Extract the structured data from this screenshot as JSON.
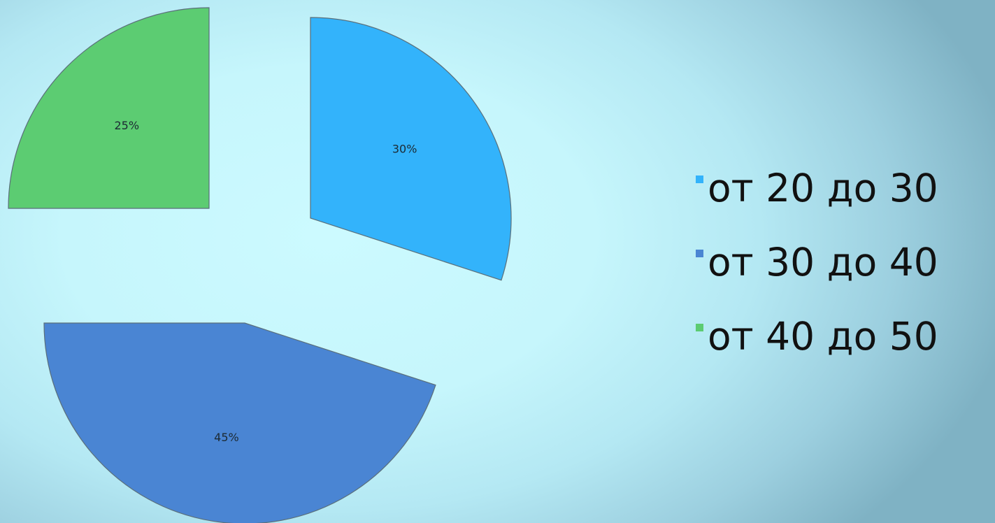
{
  "chart_data": {
    "type": "pie",
    "exploded": true,
    "categories": [
      "от 20 до 30",
      "от 30 до 40",
      "от 40 до 50"
    ],
    "values": [
      30,
      45,
      25
    ],
    "labels": [
      "30%",
      "45%",
      "25%"
    ],
    "colors": [
      "#33b3fb",
      "#4a85d3",
      "#5ccc72"
    ],
    "legend_position": "right",
    "title": ""
  }
}
